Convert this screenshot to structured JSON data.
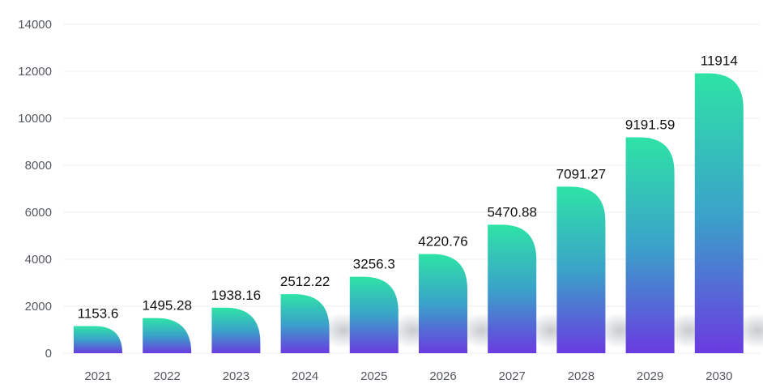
{
  "chart_data": {
    "type": "bar",
    "title": "",
    "xlabel": "",
    "ylabel": "",
    "categories": [
      "2021",
      "2022",
      "2023",
      "2024",
      "2025",
      "2026",
      "2027",
      "2028",
      "2029",
      "2030"
    ],
    "values": [
      1153.6,
      1495.28,
      1938.16,
      2512.22,
      3256.3,
      4220.76,
      5470.88,
      7091.27,
      9191.59,
      11914
    ],
    "value_labels": [
      "1153.6",
      "1495.28",
      "1938.16",
      "2512.22",
      "3256.3",
      "4220.76",
      "5470.88",
      "7091.27",
      "9191.59",
      "11914"
    ],
    "yticks": [
      0,
      2000,
      4000,
      6000,
      8000,
      10000,
      12000,
      14000
    ],
    "ylim": [
      0,
      14000
    ],
    "grid": true,
    "legend": "none",
    "colors": {
      "bar_top": "#2ee3a6",
      "bar_mid": "#3aa3c9",
      "bar_bottom": "#6a3be0",
      "grid": "#eceef1",
      "tick_text": "#555a60",
      "label_text": "#111111"
    }
  }
}
